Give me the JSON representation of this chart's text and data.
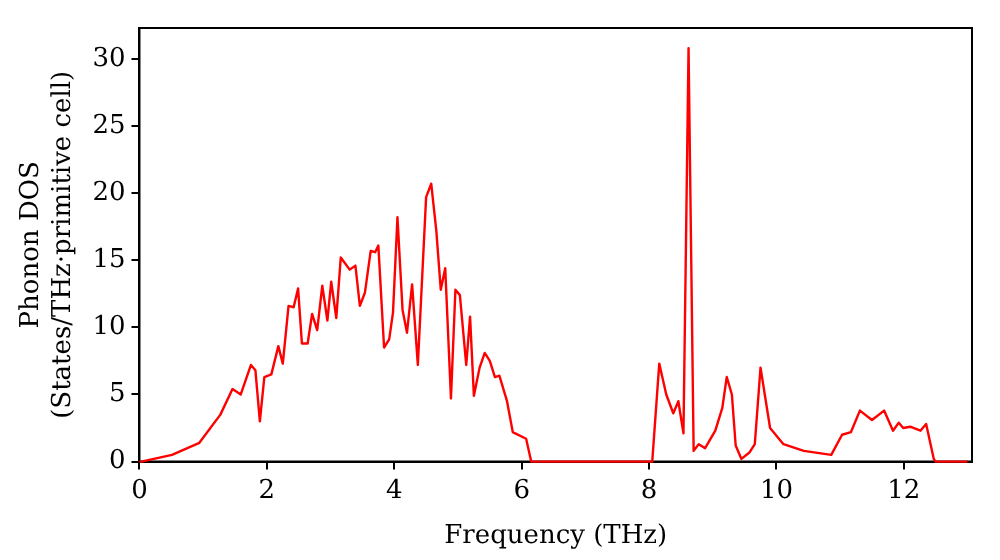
{
  "chart_data": {
    "type": "line",
    "xlabel": "Frequency (THz)",
    "ylabel": "Phonon DOS\n(States/THz·primitive cell)",
    "x": [
      0,
      0.03,
      0.51,
      0.94,
      1.27,
      1.46,
      1.59,
      1.75,
      1.82,
      1.89,
      1.96,
      2.07,
      2.18,
      2.25,
      2.34,
      2.42,
      2.49,
      2.55,
      2.64,
      2.71,
      2.79,
      2.87,
      2.95,
      3.01,
      3.09,
      3.16,
      3.3,
      3.39,
      3.46,
      3.54,
      3.63,
      3.7,
      3.75,
      3.84,
      3.92,
      3.98,
      4.05,
      4.13,
      4.2,
      4.28,
      4.37,
      4.5,
      4.58,
      4.66,
      4.73,
      4.8,
      4.89,
      4.96,
      5.03,
      5.13,
      5.19,
      5.25,
      5.34,
      5.42,
      5.5,
      5.58,
      5.65,
      5.77,
      5.86,
      6.07,
      6.15,
      8.05,
      8.16,
      8.27,
      8.38,
      8.46,
      8.54,
      8.62,
      8.7,
      8.78,
      8.88,
      9.04,
      9.15,
      9.22,
      9.3,
      9.36,
      9.45,
      9.58,
      9.66,
      9.75,
      9.9,
      10.11,
      10.43,
      10.86,
      11.03,
      11.17,
      11.31,
      11.5,
      11.69,
      11.83,
      11.92,
      11.99,
      12.1,
      12.26,
      12.35,
      12.47,
      12.5,
      13.0
    ],
    "series": [
      {
        "color": "#ff0000",
        "values": [
          0,
          0,
          0.5,
          1.4,
          3.5,
          5.4,
          5.0,
          7.2,
          6.8,
          3.0,
          6.3,
          6.5,
          8.6,
          7.3,
          11.6,
          11.5,
          12.9,
          8.8,
          8.8,
          11.0,
          9.8,
          13.1,
          10.5,
          13.4,
          10.7,
          15.2,
          14.3,
          14.6,
          11.6,
          12.6,
          15.7,
          15.6,
          16.1,
          8.5,
          9.1,
          11.1,
          18.2,
          11.3,
          9.6,
          13.2,
          7.2,
          19.7,
          20.7,
          17.2,
          12.8,
          14.4,
          4.7,
          12.8,
          12.4,
          7.2,
          10.8,
          4.9,
          7.0,
          8.1,
          7.5,
          6.3,
          6.4,
          4.5,
          2.2,
          1.7,
          0,
          0,
          7.3,
          5.0,
          3.6,
          4.5,
          2.1,
          30.8,
          0.8,
          1.3,
          1.0,
          2.3,
          4.0,
          6.3,
          5.0,
          1.2,
          0.2,
          0.7,
          1.3,
          7.0,
          2.5,
          1.3,
          0.8,
          0.5,
          2.0,
          2.2,
          3.8,
          3.1,
          3.8,
          2.3,
          2.9,
          2.5,
          2.6,
          2.3,
          2.8,
          0.2,
          0,
          0
        ]
      }
    ],
    "xlim": [
      0,
      13.07
    ],
    "ylim": [
      0,
      32.3
    ],
    "xticks": [
      0,
      2,
      4,
      6,
      8,
      10,
      12
    ],
    "yticks": [
      0,
      5,
      10,
      15,
      20,
      25,
      30
    ],
    "grid": false,
    "legend": false,
    "marker": "none",
    "line_style": "solid"
  }
}
